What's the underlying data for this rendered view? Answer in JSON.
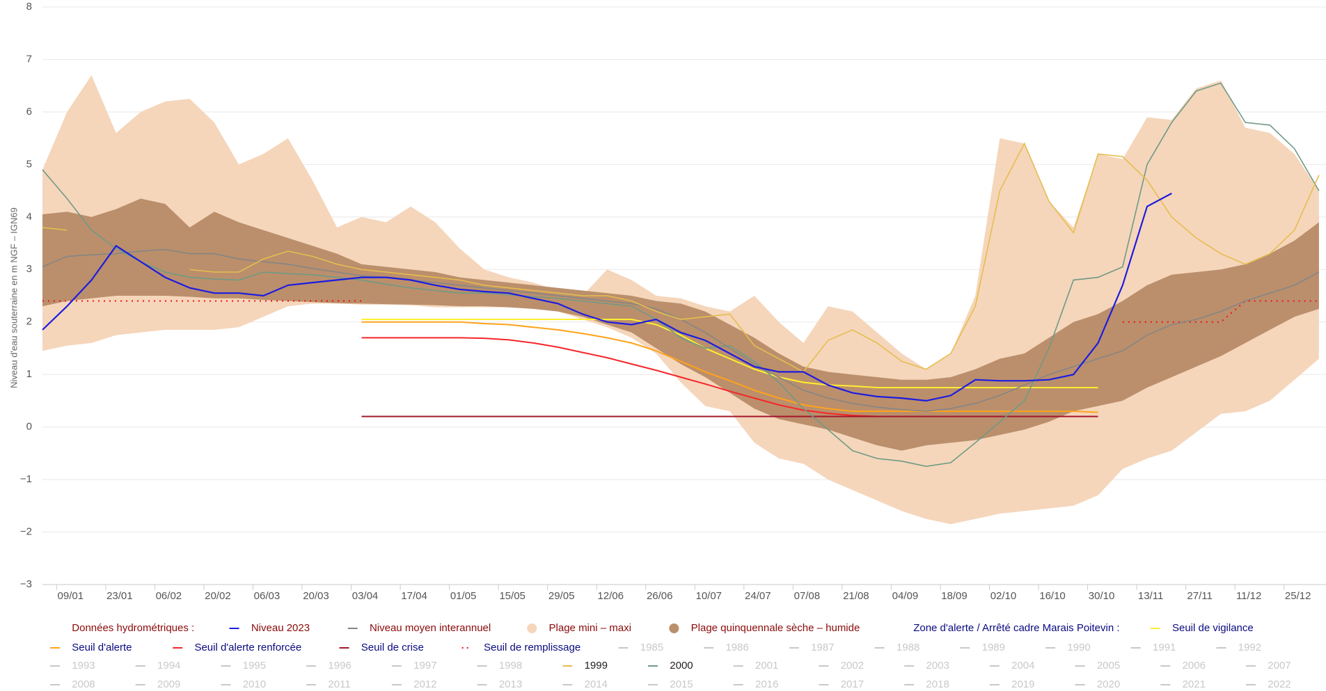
{
  "chart_data": {
    "type": "line",
    "y_axis_label": "Niveau d'eau souterraine en m NGF – IGN69",
    "grid": true,
    "xlim": [
      1,
      367
    ],
    "ylim": [
      -3,
      8
    ],
    "yticks": [
      {
        "value": -3,
        "label": "−3"
      },
      {
        "value": -2,
        "label": "−2"
      },
      {
        "value": -1,
        "label": "−1"
      },
      0,
      1,
      2,
      3,
      4,
      5,
      6,
      7,
      8
    ],
    "xticks": [
      {
        "value": 9,
        "label": "09/01"
      },
      {
        "value": 23,
        "label": "23/01"
      },
      {
        "value": 37,
        "label": "06/02"
      },
      {
        "value": 51,
        "label": "20/02"
      },
      {
        "value": 65,
        "label": "06/03"
      },
      {
        "value": 79,
        "label": "20/03"
      },
      {
        "value": 93,
        "label": "03/04"
      },
      {
        "value": 107,
        "label": "17/04"
      },
      {
        "value": 121,
        "label": "01/05"
      },
      {
        "value": 135,
        "label": "15/05"
      },
      {
        "value": 149,
        "label": "29/05"
      },
      {
        "value": 163,
        "label": "12/06"
      },
      {
        "value": 177,
        "label": "26/06"
      },
      {
        "value": 191,
        "label": "10/07"
      },
      {
        "value": 205,
        "label": "24/07"
      },
      {
        "value": 219,
        "label": "07/08"
      },
      {
        "value": 233,
        "label": "21/08"
      },
      {
        "value": 247,
        "label": "04/09"
      },
      {
        "value": 261,
        "label": "18/09"
      },
      {
        "value": 275,
        "label": "02/10"
      },
      {
        "value": 289,
        "label": "16/10"
      },
      {
        "value": 303,
        "label": "30/10"
      },
      {
        "value": 317,
        "label": "13/11"
      },
      {
        "value": 331,
        "label": "27/11"
      },
      {
        "value": 345,
        "label": "11/12"
      },
      {
        "value": 359,
        "label": "25/12"
      }
    ],
    "x": [
      1,
      8,
      15,
      22,
      29,
      36,
      43,
      50,
      57,
      64,
      71,
      78,
      85,
      92,
      99,
      106,
      113,
      120,
      127,
      134,
      141,
      148,
      155,
      162,
      169,
      176,
      183,
      190,
      197,
      204,
      211,
      218,
      225,
      232,
      239,
      246,
      253,
      260,
      267,
      274,
      281,
      288,
      295,
      302,
      309,
      316,
      323,
      330,
      337,
      344,
      351,
      358,
      365
    ],
    "legend_groups": [
      "Données hydrométriques :",
      "Zone d'alerte / Arrêté cadre Marais Poitevin :"
    ],
    "bands": [
      {
        "name": "Plage mini – maxi",
        "color": "#f5d6bb",
        "upper": [
          4.9,
          6.0,
          6.7,
          5.6,
          6.0,
          6.2,
          6.25,
          5.8,
          5.0,
          5.2,
          5.5,
          4.7,
          3.8,
          4.0,
          3.9,
          4.2,
          3.9,
          3.4,
          3.0,
          2.85,
          2.75,
          2.6,
          2.5,
          3.0,
          2.8,
          2.5,
          2.45,
          2.3,
          2.2,
          2.5,
          2.0,
          1.6,
          2.3,
          2.2,
          1.8,
          1.4,
          1.1,
          1.4,
          2.5,
          5.5,
          5.4,
          4.3,
          3.8,
          5.2,
          5.1,
          5.9,
          5.85,
          6.45,
          6.6,
          5.7,
          5.6,
          5.2,
          4.5
        ],
        "lower": [
          1.45,
          1.55,
          1.6,
          1.75,
          1.8,
          1.85,
          1.85,
          1.85,
          1.9,
          2.1,
          2.3,
          2.35,
          2.35,
          2.33,
          2.33,
          2.32,
          2.28,
          2.28,
          2.28,
          2.28,
          2.25,
          2.2,
          2.05,
          1.9,
          1.7,
          1.4,
          0.85,
          0.4,
          0.3,
          -0.3,
          -0.6,
          -0.7,
          -1.0,
          -1.2,
          -1.4,
          -1.6,
          -1.75,
          -1.85,
          -1.75,
          -1.65,
          -1.6,
          -1.55,
          -1.5,
          -1.3,
          -0.8,
          -0.6,
          -0.45,
          -0.1,
          0.25,
          0.3,
          0.5,
          0.9,
          1.3
        ]
      },
      {
        "name": "Plage quinquennale sèche – humide",
        "color": "#bb8f6c",
        "upper": [
          4.05,
          4.1,
          4.0,
          4.15,
          4.35,
          4.25,
          3.8,
          4.1,
          3.9,
          3.75,
          3.6,
          3.45,
          3.3,
          3.1,
          3.05,
          3.0,
          2.95,
          2.85,
          2.8,
          2.75,
          2.7,
          2.65,
          2.6,
          2.55,
          2.5,
          2.4,
          2.35,
          2.2,
          1.95,
          1.7,
          1.4,
          1.15,
          1.05,
          1.0,
          0.95,
          0.9,
          0.9,
          0.95,
          1.1,
          1.3,
          1.4,
          1.7,
          2.0,
          2.15,
          2.4,
          2.7,
          2.9,
          2.95,
          3.0,
          3.1,
          3.3,
          3.55,
          3.9
        ],
        "lower": [
          2.3,
          2.4,
          2.45,
          2.5,
          2.5,
          2.5,
          2.48,
          2.45,
          2.45,
          2.42,
          2.4,
          2.38,
          2.36,
          2.35,
          2.34,
          2.33,
          2.32,
          2.3,
          2.3,
          2.28,
          2.25,
          2.2,
          2.1,
          1.95,
          1.8,
          1.5,
          1.2,
          0.95,
          0.65,
          0.35,
          0.15,
          0.05,
          -0.05,
          -0.2,
          -0.35,
          -0.45,
          -0.35,
          -0.3,
          -0.25,
          -0.15,
          -0.05,
          0.1,
          0.3,
          0.4,
          0.5,
          0.75,
          0.95,
          1.15,
          1.35,
          1.6,
          1.85,
          2.1,
          2.25
        ]
      }
    ],
    "series": [
      {
        "name": "Niveau 2023",
        "color": "#1c1ce0",
        "values": [
          1.85,
          2.3,
          2.8,
          3.45,
          3.15,
          2.85,
          2.65,
          2.55,
          2.55,
          2.5,
          2.7,
          2.75,
          2.8,
          2.85,
          2.85,
          2.8,
          2.7,
          2.62,
          2.58,
          2.55,
          2.45,
          2.35,
          2.15,
          2.0,
          1.95,
          2.05,
          1.8,
          1.65,
          1.4,
          1.15,
          1.05,
          1.05,
          0.8,
          0.65,
          0.58,
          0.55,
          0.5,
          0.6,
          0.9,
          0.88,
          0.88,
          0.9,
          1.0,
          1.6,
          2.7,
          4.2,
          4.45,
          null,
          null,
          null,
          null,
          null,
          null
        ]
      },
      {
        "name": "Niveau moyen interannuel",
        "color": "#858585",
        "values": [
          3.05,
          3.25,
          3.28,
          3.3,
          3.35,
          3.38,
          3.3,
          3.3,
          3.2,
          3.15,
          3.1,
          3.02,
          2.95,
          2.88,
          2.85,
          2.8,
          2.75,
          2.7,
          2.65,
          2.6,
          2.55,
          2.5,
          2.45,
          2.4,
          2.35,
          2.25,
          2.05,
          1.8,
          1.5,
          1.2,
          0.95,
          0.7,
          0.55,
          0.45,
          0.38,
          0.33,
          0.3,
          0.35,
          0.45,
          0.6,
          0.8,
          1.0,
          1.15,
          1.3,
          1.45,
          1.75,
          1.95,
          2.05,
          2.2,
          2.4,
          2.55,
          2.7,
          2.95
        ]
      },
      {
        "name": "1999",
        "color": "#e6bd4e",
        "values": [
          3.8,
          3.75,
          null,
          null,
          null,
          null,
          3.0,
          2.95,
          2.95,
          3.2,
          3.35,
          3.25,
          3.1,
          3.0,
          2.95,
          2.9,
          2.85,
          2.8,
          2.7,
          2.65,
          2.6,
          2.55,
          2.5,
          2.5,
          2.4,
          2.2,
          2.05,
          2.1,
          2.15,
          1.55,
          1.3,
          1.05,
          1.65,
          1.85,
          1.6,
          1.25,
          1.1,
          1.4,
          2.3,
          4.5,
          5.4,
          4.3,
          3.7,
          5.2,
          5.15,
          4.7,
          4.0,
          3.6,
          3.3,
          3.1,
          3.3,
          3.75,
          4.8
        ]
      },
      {
        "name": "2000",
        "color": "#6f9a85",
        "values": [
          4.9,
          4.35,
          3.75,
          3.4,
          3.15,
          2.95,
          2.85,
          2.82,
          2.8,
          2.95,
          2.92,
          2.9,
          2.85,
          2.8,
          2.72,
          2.65,
          2.6,
          2.55,
          2.55,
          2.52,
          2.48,
          2.45,
          2.4,
          2.35,
          2.3,
          2.05,
          1.7,
          1.5,
          1.55,
          1.25,
          0.85,
          0.35,
          -0.05,
          -0.45,
          -0.6,
          -0.65,
          -0.75,
          -0.68,
          -0.3,
          0.1,
          0.5,
          1.5,
          2.8,
          2.85,
          3.05,
          5.0,
          5.8,
          6.4,
          6.55,
          5.8,
          5.75,
          5.3,
          4.5
        ]
      }
    ],
    "thresholds": [
      {
        "name": "Seuil de vigilance",
        "color": "#ffef2e",
        "values": [
          null,
          null,
          null,
          null,
          null,
          null,
          null,
          null,
          null,
          null,
          null,
          null,
          null,
          2.05,
          2.05,
          2.05,
          2.05,
          2.05,
          2.05,
          2.05,
          2.05,
          2.05,
          2.05,
          2.05,
          2.05,
          1.95,
          1.75,
          1.5,
          1.3,
          1.1,
          0.95,
          0.85,
          0.8,
          0.78,
          0.75,
          0.75,
          0.75,
          0.75,
          0.75,
          0.75,
          0.75,
          0.75,
          0.75,
          0.75,
          null,
          null,
          null,
          null,
          null,
          null,
          null,
          null,
          null
        ]
      },
      {
        "name": "Seuil d'alerte",
        "color": "#ffa31a",
        "values": [
          null,
          null,
          null,
          null,
          null,
          null,
          null,
          null,
          null,
          null,
          null,
          null,
          null,
          2.0,
          2.0,
          2.0,
          2.0,
          2.0,
          1.97,
          1.95,
          1.9,
          1.85,
          1.78,
          1.7,
          1.6,
          1.45,
          1.25,
          1.05,
          0.88,
          0.7,
          0.55,
          0.42,
          0.35,
          0.3,
          0.3,
          0.3,
          0.3,
          0.3,
          0.3,
          0.3,
          0.3,
          0.3,
          0.3,
          0.28,
          null,
          null,
          null,
          null,
          null,
          null,
          null,
          null,
          null
        ]
      },
      {
        "name": "Seuil d'alerte renforcée",
        "color": "#f5262a",
        "values": [
          null,
          null,
          null,
          null,
          null,
          null,
          null,
          null,
          null,
          null,
          null,
          null,
          null,
          1.7,
          1.7,
          1.7,
          1.7,
          1.7,
          1.69,
          1.66,
          1.6,
          1.52,
          1.42,
          1.32,
          1.2,
          1.08,
          0.95,
          0.82,
          0.68,
          0.55,
          0.42,
          0.32,
          0.26,
          0.22,
          0.2,
          0.2,
          0.2,
          0.2,
          0.2,
          0.2,
          0.2,
          0.2,
          0.2,
          0.2,
          null,
          null,
          null,
          null,
          null,
          null,
          null,
          null,
          null
        ]
      },
      {
        "name": "Seuil de crise",
        "color": "#a3142b",
        "values": [
          null,
          null,
          null,
          null,
          null,
          null,
          null,
          null,
          null,
          null,
          null,
          null,
          null,
          0.2,
          0.2,
          0.2,
          0.2,
          0.2,
          0.2,
          0.2,
          0.2,
          0.2,
          0.2,
          0.2,
          0.2,
          0.2,
          0.2,
          0.2,
          0.2,
          0.2,
          0.2,
          0.2,
          0.2,
          0.2,
          0.2,
          0.2,
          0.2,
          0.2,
          0.2,
          0.2,
          0.2,
          0.2,
          0.2,
          0.2,
          null,
          null,
          null,
          null,
          null,
          null,
          null,
          null,
          null
        ]
      },
      {
        "name": "Seuil de remplissage",
        "color": "#ee1111",
        "dotted": true,
        "values": [
          2.4,
          2.4,
          2.4,
          2.4,
          2.4,
          2.4,
          2.4,
          2.4,
          2.4,
          2.4,
          2.4,
          2.4,
          2.4,
          2.4,
          null,
          null,
          null,
          null,
          null,
          null,
          null,
          null,
          null,
          null,
          null,
          null,
          null,
          null,
          null,
          null,
          null,
          null,
          null,
          null,
          null,
          null,
          null,
          null,
          null,
          null,
          null,
          null,
          null,
          null,
          2.0,
          2.0,
          2.0,
          2.0,
          2.0,
          2.4,
          2.4,
          2.4,
          2.4
        ]
      }
    ],
    "inactive_years": [
      "1985",
      "1986",
      "1987",
      "1988",
      "1989",
      "1990",
      "1991",
      "1992",
      "1993",
      "1994",
      "1995",
      "1996",
      "1997",
      "1998",
      "2001",
      "2002",
      "2003",
      "2004",
      "2005",
      "2006",
      "2007",
      "2008",
      "2009",
      "2010",
      "2011",
      "2012",
      "2013",
      "2014",
      "2015",
      "2016",
      "2017",
      "2018",
      "2019",
      "2020",
      "2021",
      "2022"
    ],
    "inactive_color": "#c8c8c8"
  }
}
